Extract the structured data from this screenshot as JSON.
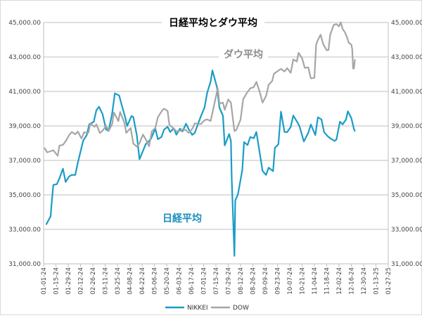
{
  "chart_data": {
    "type": "line",
    "title": "日経平均とダウ平均",
    "xlabel": "",
    "ylabel": "",
    "x_ticks": [
      "01-01-24",
      "01-15-24",
      "01-29-24",
      "02-12-24",
      "02-26-24",
      "03-11-24",
      "03-25-24",
      "04-08-24",
      "04-22-24",
      "05-06-24",
      "05-20-24",
      "06-03-24",
      "06-17-24",
      "07-01-24",
      "07-15-24",
      "07-29-24",
      "08-12-24",
      "08-26-24",
      "09-09-24",
      "09-23-24",
      "10-07-24",
      "10-21-24",
      "11-04-24",
      "11-18-24",
      "12-02-24",
      "12-16-24",
      "12-30-24",
      "01-13-25",
      "01-27-25"
    ],
    "xlim": [
      "2024-01-01",
      "2025-01-27"
    ],
    "y_ticks": [
      "31,000.00",
      "33,000.00",
      "35,000.00",
      "37,000.00",
      "39,000.00",
      "41,000.00",
      "43,000.00",
      "45,000.00"
    ],
    "ylim": [
      31000,
      45000
    ],
    "grid": "horizontal",
    "legend_position": "bottom",
    "annotations": [
      {
        "text": "ダウ平均",
        "series": "DOW"
      },
      {
        "text": "日経平均",
        "series": "NIKKEI"
      }
    ],
    "series": [
      {
        "name": "NIKKEI",
        "color": "#1b9cc6",
        "points": [
          [
            "2024-01-04",
            33290
          ],
          [
            "2024-01-05",
            33380
          ],
          [
            "2024-01-09",
            33760
          ],
          [
            "2024-01-10",
            34440
          ],
          [
            "2024-01-12",
            35580
          ],
          [
            "2024-01-16",
            35620
          ],
          [
            "2024-01-19",
            35960
          ],
          [
            "2024-01-23",
            36520
          ],
          [
            "2024-01-26",
            35750
          ],
          [
            "2024-01-30",
            36070
          ],
          [
            "2024-02-02",
            36160
          ],
          [
            "2024-02-06",
            36160
          ],
          [
            "2024-02-09",
            36890
          ],
          [
            "2024-02-15",
            38150
          ],
          [
            "2024-02-19",
            38470
          ],
          [
            "2024-02-22",
            39100
          ],
          [
            "2024-02-27",
            39240
          ],
          [
            "2024-03-01",
            39910
          ],
          [
            "2024-03-04",
            40110
          ],
          [
            "2024-03-08",
            39690
          ],
          [
            "2024-03-12",
            38790
          ],
          [
            "2024-03-15",
            38710
          ],
          [
            "2024-03-19",
            39740
          ],
          [
            "2024-03-22",
            40890
          ],
          [
            "2024-03-27",
            40760
          ],
          [
            "2024-03-29",
            40370
          ],
          [
            "2024-04-03",
            39450
          ],
          [
            "2024-04-05",
            38990
          ],
          [
            "2024-04-10",
            39580
          ],
          [
            "2024-04-12",
            39520
          ],
          [
            "2024-04-16",
            38470
          ],
          [
            "2024-04-19",
            37070
          ],
          [
            "2024-04-23",
            37550
          ],
          [
            "2024-04-26",
            37930
          ],
          [
            "2024-05-02",
            38240
          ],
          [
            "2024-05-07",
            38840
          ],
          [
            "2024-05-10",
            38230
          ],
          [
            "2024-05-14",
            38360
          ],
          [
            "2024-05-17",
            38790
          ],
          [
            "2024-05-21",
            38950
          ],
          [
            "2024-05-24",
            38650
          ],
          [
            "2024-05-28",
            38860
          ],
          [
            "2024-05-31",
            38490
          ],
          [
            "2024-06-04",
            38840
          ],
          [
            "2024-06-07",
            38680
          ],
          [
            "2024-06-11",
            39130
          ],
          [
            "2024-06-14",
            38810
          ],
          [
            "2024-06-18",
            38480
          ],
          [
            "2024-06-21",
            38600
          ],
          [
            "2024-06-25",
            39170
          ],
          [
            "2024-06-28",
            39580
          ],
          [
            "2024-07-02",
            40070
          ],
          [
            "2024-07-05",
            40910
          ],
          [
            "2024-07-09",
            41580
          ],
          [
            "2024-07-11",
            42220
          ],
          [
            "2024-07-16",
            41280
          ],
          [
            "2024-07-19",
            40060
          ],
          [
            "2024-07-23",
            39590
          ],
          [
            "2024-07-25",
            37870
          ],
          [
            "2024-07-30",
            38530
          ],
          [
            "2024-08-01",
            38130
          ],
          [
            "2024-08-02",
            35910
          ],
          [
            "2024-08-05",
            31460
          ],
          [
            "2024-08-06",
            34680
          ],
          [
            "2024-08-09",
            35030
          ],
          [
            "2024-08-14",
            36440
          ],
          [
            "2024-08-16",
            38060
          ],
          [
            "2024-08-20",
            37890
          ],
          [
            "2024-08-23",
            38360
          ],
          [
            "2024-08-27",
            38290
          ],
          [
            "2024-08-30",
            38650
          ],
          [
            "2024-09-04",
            37050
          ],
          [
            "2024-09-06",
            36390
          ],
          [
            "2024-09-10",
            36160
          ],
          [
            "2024-09-13",
            36580
          ],
          [
            "2024-09-18",
            36380
          ],
          [
            "2024-09-20",
            37720
          ],
          [
            "2024-09-24",
            37940
          ],
          [
            "2024-09-27",
            39830
          ],
          [
            "2024-10-01",
            38650
          ],
          [
            "2024-10-04",
            38640
          ],
          [
            "2024-10-08",
            38940
          ],
          [
            "2024-10-11",
            39600
          ],
          [
            "2024-10-16",
            39180
          ],
          [
            "2024-10-18",
            38980
          ],
          [
            "2024-10-23",
            38100
          ],
          [
            "2024-10-28",
            38600
          ],
          [
            "2024-10-31",
            39080
          ],
          [
            "2024-11-05",
            38470
          ],
          [
            "2024-11-08",
            39500
          ],
          [
            "2024-11-12",
            39380
          ],
          [
            "2024-11-15",
            38640
          ],
          [
            "2024-11-19",
            38410
          ],
          [
            "2024-11-22",
            38280
          ],
          [
            "2024-11-27",
            38130
          ],
          [
            "2024-11-29",
            38210
          ],
          [
            "2024-12-03",
            39250
          ],
          [
            "2024-12-06",
            39090
          ],
          [
            "2024-12-10",
            39370
          ],
          [
            "2024-12-12",
            39850
          ],
          [
            "2024-12-16",
            39460
          ],
          [
            "2024-12-19",
            38810
          ],
          [
            "2024-12-20",
            38700
          ]
        ]
      },
      {
        "name": "DOW",
        "color": "#a6a6a6",
        "points": [
          [
            "2024-01-02",
            37720
          ],
          [
            "2024-01-05",
            37470
          ],
          [
            "2024-01-09",
            37530
          ],
          [
            "2024-01-12",
            37590
          ],
          [
            "2024-01-17",
            37270
          ],
          [
            "2024-01-19",
            37860
          ],
          [
            "2024-01-23",
            37900
          ],
          [
            "2024-01-26",
            38110
          ],
          [
            "2024-01-30",
            38470
          ],
          [
            "2024-02-02",
            38650
          ],
          [
            "2024-02-06",
            38520
          ],
          [
            "2024-02-09",
            38670
          ],
          [
            "2024-02-13",
            38270
          ],
          [
            "2024-02-16",
            38630
          ],
          [
            "2024-02-21",
            38610
          ],
          [
            "2024-02-23",
            39130
          ],
          [
            "2024-02-28",
            38950
          ],
          [
            "2024-03-01",
            39090
          ],
          [
            "2024-03-05",
            38590
          ],
          [
            "2024-03-08",
            38720
          ],
          [
            "2024-03-12",
            39010
          ],
          [
            "2024-03-15",
            38710
          ],
          [
            "2024-03-19",
            39110
          ],
          [
            "2024-03-21",
            39780
          ],
          [
            "2024-03-26",
            39280
          ],
          [
            "2024-03-28",
            39810
          ],
          [
            "2024-04-02",
            39170
          ],
          [
            "2024-04-04",
            38600
          ],
          [
            "2024-04-09",
            38880
          ],
          [
            "2024-04-12",
            37980
          ],
          [
            "2024-04-16",
            37800
          ],
          [
            "2024-04-19",
            37990
          ],
          [
            "2024-04-23",
            38500
          ],
          [
            "2024-04-26",
            38240
          ],
          [
            "2024-04-30",
            37820
          ],
          [
            "2024-05-03",
            38680
          ],
          [
            "2024-05-07",
            38880
          ],
          [
            "2024-05-10",
            39510
          ],
          [
            "2024-05-15",
            39910
          ],
          [
            "2024-05-17",
            40000
          ],
          [
            "2024-05-21",
            39870
          ],
          [
            "2024-05-23",
            39070
          ],
          [
            "2024-05-28",
            38850
          ],
          [
            "2024-05-31",
            38690
          ],
          [
            "2024-06-04",
            38710
          ],
          [
            "2024-06-07",
            38800
          ],
          [
            "2024-06-11",
            38750
          ],
          [
            "2024-06-14",
            38590
          ],
          [
            "2024-06-18",
            38830
          ],
          [
            "2024-06-21",
            39150
          ],
          [
            "2024-06-25",
            39110
          ],
          [
            "2024-06-28",
            39120
          ],
          [
            "2024-07-02",
            39330
          ],
          [
            "2024-07-05",
            39380
          ],
          [
            "2024-07-09",
            39290
          ],
          [
            "2024-07-12",
            40000
          ],
          [
            "2024-07-16",
            40950
          ],
          [
            "2024-07-17",
            41200
          ],
          [
            "2024-07-19",
            40290
          ],
          [
            "2024-07-23",
            40360
          ],
          [
            "2024-07-25",
            39940
          ],
          [
            "2024-07-29",
            40540
          ],
          [
            "2024-08-01",
            40350
          ],
          [
            "2024-08-05",
            38700
          ],
          [
            "2024-08-07",
            38760
          ],
          [
            "2024-08-12",
            39360
          ],
          [
            "2024-08-15",
            40560
          ],
          [
            "2024-08-19",
            40900
          ],
          [
            "2024-08-23",
            41180
          ],
          [
            "2024-08-27",
            41250
          ],
          [
            "2024-08-30",
            41560
          ],
          [
            "2024-09-03",
            40940
          ],
          [
            "2024-09-06",
            40350
          ],
          [
            "2024-09-10",
            40740
          ],
          [
            "2024-09-13",
            41390
          ],
          [
            "2024-09-17",
            41610
          ],
          [
            "2024-09-19",
            42030
          ],
          [
            "2024-09-24",
            42210
          ],
          [
            "2024-09-27",
            42310
          ],
          [
            "2024-10-01",
            42160
          ],
          [
            "2024-10-04",
            42350
          ],
          [
            "2024-10-08",
            42080
          ],
          [
            "2024-10-11",
            42860
          ],
          [
            "2024-10-15",
            42740
          ],
          [
            "2024-10-17",
            43240
          ],
          [
            "2024-10-21",
            42930
          ],
          [
            "2024-10-24",
            42370
          ],
          [
            "2024-10-28",
            42390
          ],
          [
            "2024-10-31",
            41760
          ],
          [
            "2024-11-04",
            41790
          ],
          [
            "2024-11-06",
            43730
          ],
          [
            "2024-11-08",
            43990
          ],
          [
            "2024-11-11",
            44290
          ],
          [
            "2024-11-14",
            43750
          ],
          [
            "2024-11-18",
            43390
          ],
          [
            "2024-11-20",
            43410
          ],
          [
            "2024-11-22",
            44300
          ],
          [
            "2024-11-26",
            44860
          ],
          [
            "2024-11-29",
            44910
          ],
          [
            "2024-12-02",
            44780
          ],
          [
            "2024-12-04",
            45010
          ],
          [
            "2024-12-06",
            44640
          ],
          [
            "2024-12-09",
            44400
          ],
          [
            "2024-12-11",
            44150
          ],
          [
            "2024-12-13",
            43830
          ],
          [
            "2024-12-16",
            43720
          ],
          [
            "2024-12-17",
            43450
          ],
          [
            "2024-12-18",
            42330
          ],
          [
            "2024-12-19",
            42340
          ],
          [
            "2024-12-20",
            42840
          ]
        ]
      }
    ]
  }
}
